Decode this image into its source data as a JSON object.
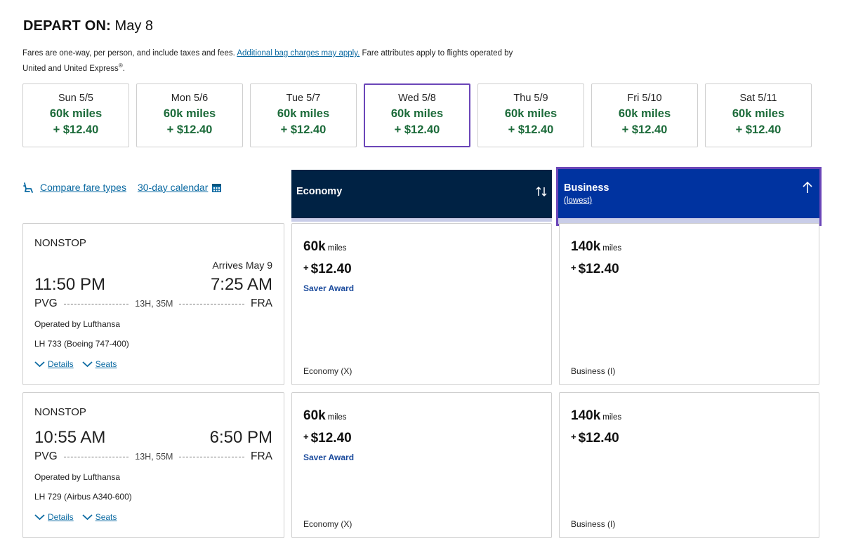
{
  "header": {
    "depart_label": "DEPART ON:",
    "depart_date": "May 8",
    "note_prefix": "Fares are one-way, per person, and include taxes and fees.",
    "note_link": "Additional bag charges may apply.",
    "note_suffix": "Fare attributes apply to flights operated by United and United Express",
    "note_reg": "®",
    "note_end": "."
  },
  "dates": [
    {
      "day": "Sun 5/5",
      "miles": "60k miles",
      "price": "+ $12.40",
      "selected": false
    },
    {
      "day": "Mon 5/6",
      "miles": "60k miles",
      "price": "+ $12.40",
      "selected": false
    },
    {
      "day": "Tue 5/7",
      "miles": "60k miles",
      "price": "+ $12.40",
      "selected": false
    },
    {
      "day": "Wed 5/8",
      "miles": "60k miles",
      "price": "+ $12.40",
      "selected": true
    },
    {
      "day": "Thu 5/9",
      "miles": "60k miles",
      "price": "+ $12.40",
      "selected": false
    },
    {
      "day": "Fri 5/10",
      "miles": "60k miles",
      "price": "+ $12.40",
      "selected": false
    },
    {
      "day": "Sat 5/11",
      "miles": "60k miles",
      "price": "+ $12.40",
      "selected": false
    }
  ],
  "links": {
    "compare": "Compare fare types",
    "calendar": "30-day calendar"
  },
  "columns": {
    "economy": {
      "label": "Economy"
    },
    "business": {
      "label": "Business",
      "sub": "(lowest)"
    }
  },
  "flights": [
    {
      "type": "NONSTOP",
      "arrives": "Arrives May 9",
      "depart_time": "11:50 PM",
      "arrive_time": "7:25 AM",
      "origin": "PVG",
      "destination": "FRA",
      "duration": "13H, 35M",
      "operated": "Operated by Lufthansa",
      "aircraft": "LH 733 (Boeing 747-400)",
      "details": "Details",
      "seats": "Seats",
      "economy": {
        "miles": "60k",
        "miles_unit": "miles",
        "plus": "+",
        "tax": "$12.40",
        "award": "Saver Award",
        "class": "Economy (X)"
      },
      "business": {
        "miles": "140k",
        "miles_unit": "miles",
        "plus": "+",
        "tax": "$12.40",
        "award": "",
        "class": "Business (I)"
      }
    },
    {
      "type": "NONSTOP",
      "arrives": "",
      "depart_time": "10:55 AM",
      "arrive_time": "6:50 PM",
      "origin": "PVG",
      "destination": "FRA",
      "duration": "13H, 55M",
      "operated": "Operated by Lufthansa",
      "aircraft": "LH 729 (Airbus A340-600)",
      "details": "Details",
      "seats": "Seats",
      "economy": {
        "miles": "60k",
        "miles_unit": "miles",
        "plus": "+",
        "tax": "$12.40",
        "award": "Saver Award",
        "class": "Economy (X)"
      },
      "business": {
        "miles": "140k",
        "miles_unit": "miles",
        "plus": "+",
        "tax": "$12.40",
        "award": "",
        "class": "Business (I)"
      }
    }
  ],
  "colors": {
    "fare_green": "#1c6b3a",
    "link_blue": "#0b6aa2",
    "economy_header": "#002244",
    "business_header": "#0033a0",
    "selected_border": "#6b46b8"
  }
}
